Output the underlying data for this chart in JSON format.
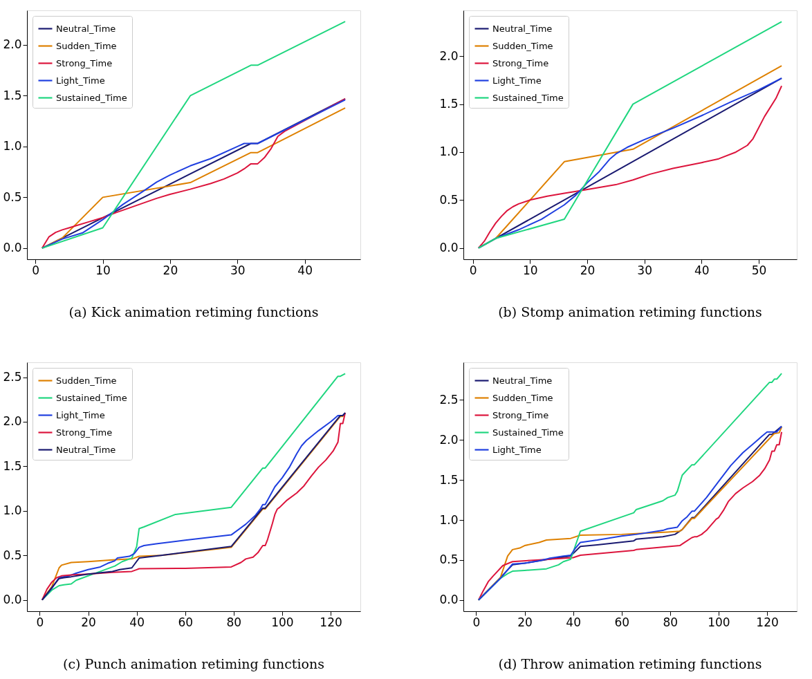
{
  "chart_data": [
    {
      "type": "line",
      "title": "(a) Kick animation retiming functions",
      "legend": "top left",
      "grid": false,
      "xlim": [
        -1.25,
        48.25
      ],
      "ylim": [
        -0.11,
        2.34
      ],
      "xticks": [
        0,
        10,
        20,
        30,
        40
      ],
      "yticks": [
        {
          "value": 0,
          "label": "0.0"
        },
        0.5,
        {
          "value": 1,
          "label": "1.0"
        },
        1.5,
        {
          "value": 2,
          "label": "2.0"
        }
      ],
      "series": [
        {
          "name": "Neutral_Time",
          "color": "#191970",
          "x": [
            1,
            32,
            33,
            46
          ],
          "values": [
            0,
            1.03,
            1.03,
            1.47
          ]
        },
        {
          "name": "Sudden_Time",
          "color": "#de8000",
          "x": [
            1,
            4,
            10,
            23,
            32,
            33,
            46
          ],
          "values": [
            0,
            0.1,
            0.5,
            0.645,
            0.94,
            0.94,
            1.38
          ]
        },
        {
          "name": "Strong_Time",
          "color": "#dc143c",
          "x": [
            1,
            2,
            3,
            4,
            5,
            6,
            8,
            10,
            12,
            15,
            18,
            20,
            23,
            26,
            28,
            30,
            31,
            32,
            33,
            34,
            35,
            36,
            37,
            46
          ],
          "values": [
            0,
            0.11,
            0.155,
            0.18,
            0.2,
            0.22,
            0.26,
            0.3,
            0.35,
            0.42,
            0.49,
            0.53,
            0.58,
            0.635,
            0.68,
            0.74,
            0.78,
            0.83,
            0.83,
            0.89,
            0.98,
            1.1,
            1.15,
            1.47
          ]
        },
        {
          "name": "Light_Time",
          "color": "#1f3fe0",
          "x": [
            1,
            4,
            7,
            10,
            13,
            16,
            18,
            20,
            23,
            26,
            30,
            31,
            33,
            46
          ],
          "values": [
            0,
            0.09,
            0.15,
            0.28,
            0.43,
            0.56,
            0.65,
            0.72,
            0.81,
            0.88,
            1.0,
            1.03,
            1.03,
            1.46
          ]
        },
        {
          "name": "Sustained_Time",
          "color": "#1fd67f",
          "x": [
            1,
            10,
            23,
            32,
            33,
            46
          ],
          "values": [
            0,
            0.2,
            1.5,
            1.8,
            1.8,
            2.23
          ]
        }
      ]
    },
    {
      "type": "line",
      "title": "(b) Stomp animation retiming functions",
      "legend": "top left",
      "grid": false,
      "xlim": [
        -1.65,
        56.65
      ],
      "ylim": [
        -0.118,
        2.478
      ],
      "xticks": [
        0,
        10,
        20,
        30,
        40,
        50
      ],
      "yticks": [
        {
          "value": 0,
          "label": "0.0"
        },
        0.5,
        {
          "value": 1,
          "label": "1.0"
        },
        1.5,
        {
          "value": 2,
          "label": "2.0"
        }
      ],
      "series": [
        {
          "name": "Neutral_Time",
          "color": "#191970",
          "x": [
            1,
            54
          ],
          "values": [
            0,
            1.77
          ]
        },
        {
          "name": "Sudden_Time",
          "color": "#de8000",
          "x": [
            1,
            4,
            16,
            28,
            54
          ],
          "values": [
            0,
            0.1,
            0.9,
            1.03,
            1.9
          ]
        },
        {
          "name": "Strong_Time",
          "color": "#dc143c",
          "x": [
            1,
            2,
            3,
            4,
            5,
            6,
            7,
            8,
            10,
            13,
            16,
            19,
            22,
            25,
            28,
            31,
            35,
            40,
            43,
            46,
            48,
            49,
            51,
            53,
            54
          ],
          "values": [
            0,
            0.07,
            0.17,
            0.26,
            0.33,
            0.39,
            0.43,
            0.46,
            0.5,
            0.54,
            0.57,
            0.6,
            0.63,
            0.66,
            0.71,
            0.77,
            0.83,
            0.89,
            0.93,
            1.0,
            1.07,
            1.14,
            1.37,
            1.56,
            1.69
          ]
        },
        {
          "name": "Light_Time",
          "color": "#1f3fe0",
          "x": [
            1,
            4,
            8,
            12,
            16,
            18,
            20,
            22,
            24,
            25,
            27,
            30,
            35,
            40,
            45,
            50,
            54
          ],
          "values": [
            0,
            0.1,
            0.19,
            0.3,
            0.45,
            0.55,
            0.68,
            0.79,
            0.93,
            0.98,
            1.05,
            1.13,
            1.25,
            1.38,
            1.52,
            1.65,
            1.77
          ]
        },
        {
          "name": "Sustained_Time",
          "color": "#1fd67f",
          "x": [
            1,
            4,
            16,
            28,
            54
          ],
          "values": [
            0,
            0.1,
            0.3,
            1.5,
            2.36
          ]
        }
      ]
    },
    {
      "type": "line",
      "title": "(c) Punch animation retiming functions",
      "legend": "top left",
      "grid": false,
      "xlim": [
        -5.25,
        132.25
      ],
      "ylim": [
        -0.127,
        2.667
      ],
      "xticks": [
        0,
        20,
        40,
        60,
        80,
        100,
        120
      ],
      "yticks": [
        {
          "value": 0,
          "label": "0.0"
        },
        0.5,
        {
          "value": 1,
          "label": "1.0"
        },
        1.5,
        {
          "value": 2,
          "label": "2.0"
        },
        2.5
      ],
      "series": [
        {
          "name": "Sudden_Time",
          "color": "#de8000",
          "x": [
            1,
            5,
            8,
            9,
            13,
            20,
            30,
            38,
            41,
            50,
            60,
            79,
            92,
            93,
            124,
            125,
            126
          ],
          "values": [
            0,
            0.15,
            0.36,
            0.39,
            0.42,
            0.43,
            0.45,
            0.46,
            0.49,
            0.5,
            0.53,
            0.59,
            1.02,
            1.02,
            2.06,
            2.06,
            2.1
          ]
        },
        {
          "name": "Sustained_Time",
          "color": "#1fd67f",
          "x": [
            1,
            5,
            8,
            10,
            13,
            15,
            25,
            31,
            34,
            38,
            40,
            41,
            43,
            56,
            79,
            92,
            93,
            123,
            124,
            126
          ],
          "values": [
            0,
            0.11,
            0.16,
            0.17,
            0.18,
            0.22,
            0.32,
            0.38,
            0.43,
            0.47,
            0.6,
            0.8,
            0.82,
            0.96,
            1.04,
            1.48,
            1.48,
            2.51,
            2.51,
            2.54
          ]
        },
        {
          "name": "Light_Time",
          "color": "#1f3fe0",
          "x": [
            1,
            5,
            8,
            12,
            15,
            20,
            25,
            28,
            31,
            32,
            37,
            39,
            41,
            43,
            48,
            60,
            79,
            85,
            89,
            91,
            92,
            93,
            97,
            100,
            103,
            106,
            108,
            110,
            115,
            120,
            123,
            125,
            126
          ],
          "values": [
            0,
            0.13,
            0.25,
            0.27,
            0.3,
            0.34,
            0.37,
            0.41,
            0.44,
            0.47,
            0.49,
            0.52,
            0.59,
            0.61,
            0.63,
            0.67,
            0.73,
            0.85,
            0.95,
            1.02,
            1.07,
            1.07,
            1.27,
            1.37,
            1.49,
            1.64,
            1.73,
            1.79,
            1.9,
            2.0,
            2.07,
            2.07,
            2.1
          ]
        },
        {
          "name": "Strong_Time",
          "color": "#dc143c",
          "x": [
            1,
            3,
            5,
            7,
            9,
            13,
            20,
            30,
            38,
            40,
            41,
            60,
            79,
            83,
            85,
            88,
            90,
            92,
            93,
            94,
            96,
            97,
            98,
            99,
            102,
            106,
            109,
            112,
            115,
            118,
            121,
            123,
            124,
            125,
            126
          ],
          "values": [
            0,
            0.12,
            0.2,
            0.25,
            0.27,
            0.28,
            0.29,
            0.31,
            0.32,
            0.34,
            0.35,
            0.355,
            0.37,
            0.42,
            0.46,
            0.48,
            0.53,
            0.61,
            0.61,
            0.68,
            0.86,
            0.96,
            1.02,
            1.04,
            1.12,
            1.2,
            1.28,
            1.39,
            1.49,
            1.57,
            1.67,
            1.77,
            1.98,
            1.98,
            2.1
          ]
        },
        {
          "name": "Neutral_Time",
          "color": "#191970",
          "x": [
            1,
            8,
            10,
            13,
            20,
            30,
            33,
            38,
            41,
            50,
            79,
            92,
            93,
            124,
            125,
            126
          ],
          "values": [
            0,
            0.24,
            0.25,
            0.26,
            0.29,
            0.32,
            0.34,
            0.36,
            0.47,
            0.5,
            0.6,
            1.03,
            1.03,
            2.07,
            2.07,
            2.1
          ]
        }
      ]
    },
    {
      "type": "line",
      "title": "(d) Throw animation retiming functions",
      "legend": "top left",
      "grid": false,
      "xlim": [
        -5.25,
        132.25
      ],
      "ylim": [
        -0.14,
        2.97
      ],
      "xticks": [
        0,
        20,
        40,
        60,
        80,
        100,
        120
      ],
      "yticks": [
        {
          "value": 0,
          "label": "0.0"
        },
        0.5,
        {
          "value": 1,
          "label": "1.0"
        },
        1.5,
        {
          "value": 2,
          "label": "2.0"
        },
        2.5
      ],
      "series": [
        {
          "name": "Neutral_Time",
          "color": "#191970",
          "x": [
            1,
            10,
            15,
            20,
            30,
            39,
            43,
            50,
            65,
            66,
            77,
            82,
            85,
            89,
            90,
            121,
            122,
            126
          ],
          "values": [
            0,
            0.28,
            0.44,
            0.46,
            0.51,
            0.55,
            0.67,
            0.69,
            0.74,
            0.76,
            0.79,
            0.82,
            0.88,
            1.03,
            1.03,
            2.07,
            2.07,
            2.17
          ]
        },
        {
          "name": "Sudden_Time",
          "color": "#de8000",
          "x": [
            1,
            10,
            13,
            15,
            18,
            20,
            26,
            29,
            39,
            43,
            60,
            66,
            79,
            84,
            85,
            89,
            90,
            122,
            123,
            125,
            126
          ],
          "values": [
            0,
            0.28,
            0.55,
            0.63,
            0.65,
            0.68,
            0.72,
            0.75,
            0.77,
            0.81,
            0.82,
            0.83,
            0.85,
            0.86,
            0.88,
            1.02,
            1.02,
            2.05,
            2.08,
            2.09,
            2.16
          ]
        },
        {
          "name": "Strong_Time",
          "color": "#dc143c",
          "x": [
            1,
            3,
            5,
            7,
            11,
            15,
            25,
            40,
            43,
            65,
            66,
            80,
            84,
            86,
            89,
            90,
            91,
            93,
            95,
            99,
            100,
            102,
            104,
            107,
            110,
            114,
            117,
            119,
            121,
            122,
            123,
            124,
            125,
            126
          ],
          "values": [
            0,
            0.12,
            0.23,
            0.3,
            0.43,
            0.48,
            0.5,
            0.53,
            0.56,
            0.62,
            0.63,
            0.67,
            0.68,
            0.72,
            0.78,
            0.79,
            0.79,
            0.82,
            0.87,
            1.01,
            1.03,
            1.12,
            1.23,
            1.33,
            1.4,
            1.48,
            1.56,
            1.64,
            1.75,
            1.86,
            1.86,
            1.94,
            1.94,
            2.1
          ]
        },
        {
          "name": "Sustained_Time",
          "color": "#1fd67f",
          "x": [
            1,
            10,
            13,
            15,
            20,
            29,
            34,
            36,
            39,
            43,
            65,
            66,
            77,
            79,
            82,
            83,
            85,
            89,
            90,
            121,
            122,
            123,
            124,
            126
          ],
          "values": [
            0,
            0.27,
            0.33,
            0.36,
            0.37,
            0.39,
            0.44,
            0.48,
            0.51,
            0.86,
            1.09,
            1.13,
            1.24,
            1.28,
            1.31,
            1.36,
            1.56,
            1.69,
            1.69,
            2.72,
            2.72,
            2.76,
            2.76,
            2.83
          ]
        },
        {
          "name": "Light_Time",
          "color": "#1f3fe0",
          "x": [
            1,
            10,
            15,
            20,
            26,
            30,
            36,
            39,
            41,
            43,
            50,
            60,
            66,
            77,
            79,
            83,
            85,
            87,
            89,
            90,
            95,
            100,
            105,
            110,
            115,
            118,
            120,
            124,
            126
          ],
          "values": [
            0,
            0.27,
            0.45,
            0.46,
            0.49,
            0.52,
            0.55,
            0.56,
            0.65,
            0.72,
            0.75,
            0.8,
            0.82,
            0.87,
            0.89,
            0.91,
            0.99,
            1.04,
            1.11,
            1.11,
            1.28,
            1.48,
            1.68,
            1.84,
            1.97,
            2.05,
            2.1,
            2.1,
            2.17
          ]
        }
      ]
    }
  ]
}
